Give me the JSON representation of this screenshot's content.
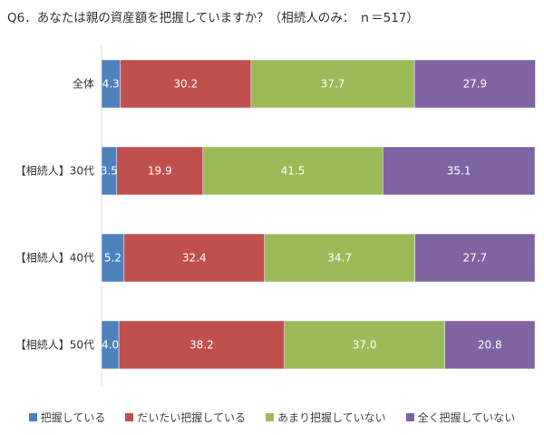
{
  "title": "Q6．あなたは親の資産額を把握していますか？（相続人のみ： ｎ＝517）",
  "chart_data": {
    "type": "bar",
    "orientation": "horizontal",
    "stacked": "percent",
    "categories": [
      "全体",
      "【相続人】30代",
      "【相続人】40代",
      "【相続人】50代"
    ],
    "series": [
      {
        "name": "把握している",
        "color": "#4f81bd",
        "values": [
          4.3,
          3.5,
          5.2,
          4.0
        ]
      },
      {
        "name": "だいたい把握している",
        "color": "#c0504d",
        "values": [
          30.2,
          19.9,
          32.4,
          38.2
        ]
      },
      {
        "name": "あまり把握していない",
        "color": "#9bbb59",
        "values": [
          37.7,
          41.5,
          34.7,
          37.0
        ]
      },
      {
        "name": "全く把握していない",
        "color": "#8064a2",
        "values": [
          27.9,
          35.1,
          27.7,
          20.8
        ]
      }
    ],
    "xlim": [
      0,
      100
    ],
    "grid": false,
    "legend_position": "bottom"
  }
}
